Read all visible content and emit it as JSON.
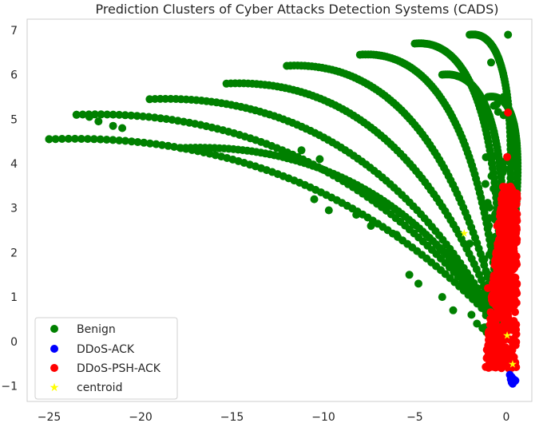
{
  "chart_data": {
    "type": "scatter",
    "title": "Prediction Clusters of Cyber Attacks Detection Systems (CADS)",
    "xlabel": "",
    "ylabel": "",
    "xlim": [
      -26.2,
      1.4
    ],
    "ylim": [
      -1.35,
      7.25
    ],
    "xticks": [
      -25,
      -20,
      -15,
      -10,
      -5,
      0
    ],
    "yticks": [
      -1,
      0,
      1,
      2,
      3,
      4,
      5,
      6,
      7
    ],
    "grid": false,
    "legend_position": "lower-left",
    "legend": [
      "Benign",
      "DDoS-ACK",
      "DDoS-PSH-ACK",
      "centroid"
    ],
    "colors": {
      "Benign": "#008000",
      "DDoS-ACK": "#0000ff",
      "DDoS-PSH-ACK": "#ff0000",
      "centroid": "#ffff00"
    },
    "series": [
      {
        "name": "Benign",
        "marker": "circle",
        "arcs": [
          {
            "start": [
              -25.0,
              4.55
            ]
          },
          {
            "start": [
              -23.5,
              5.1
            ]
          },
          {
            "start": [
              -19.5,
              5.45
            ]
          },
          {
            "start": [
              -17.8,
              4.35
            ]
          },
          {
            "start": [
              -15.3,
              5.8
            ]
          },
          {
            "start": [
              -12.0,
              6.2
            ]
          },
          {
            "start": [
              -8.0,
              6.45
            ]
          },
          {
            "start": [
              -5.0,
              6.7
            ]
          },
          {
            "start": [
              -3.5,
              6.0
            ]
          },
          {
            "start": [
              -2.0,
              6.9
            ]
          },
          {
            "start": [
              -1.0,
              5.5
            ]
          }
        ],
        "points": [
          [
            -25.0,
            4.55
          ],
          [
            -23.5,
            5.1
          ],
          [
            -22.8,
            5.05
          ],
          [
            -22.3,
            4.95
          ],
          [
            -21.5,
            4.85
          ],
          [
            -21.0,
            4.8
          ],
          [
            -17.8,
            4.35
          ],
          [
            -10.5,
            3.2
          ],
          [
            -9.7,
            2.95
          ],
          [
            -11.2,
            4.3
          ],
          [
            -10.2,
            4.1
          ],
          [
            -8.2,
            2.85
          ],
          [
            -7.4,
            2.6
          ],
          [
            -6.0,
            2.4
          ],
          [
            -5.3,
            1.5
          ],
          [
            -4.8,
            1.3
          ],
          [
            -3.5,
            1.0
          ],
          [
            -2.9,
            0.7
          ],
          [
            -1.9,
            0.6
          ],
          [
            -1.6,
            0.4
          ],
          [
            -1.3,
            0.3
          ],
          [
            -2.0,
            2.2
          ],
          [
            0.3,
            4.3
          ],
          [
            0.2,
            5.05
          ],
          [
            0.1,
            6.9
          ],
          [
            0.35,
            4.0
          ],
          [
            -0.2,
            3.8
          ],
          [
            -0.5,
            2.1
          ]
        ]
      },
      {
        "name": "DDoS-ACK",
        "marker": "circle",
        "points": [
          [
            0.2,
            -0.75
          ],
          [
            0.3,
            -0.8
          ],
          [
            0.4,
            -0.85
          ],
          [
            0.45,
            -0.9
          ],
          [
            0.35,
            -0.95
          ],
          [
            0.25,
            -0.85
          ],
          [
            0.5,
            -0.88
          ],
          [
            0.3,
            -0.92
          ]
        ]
      },
      {
        "name": "DDoS-PSH-ACK",
        "marker": "circle",
        "region": {
          "x": [
            -1.2,
            0.6
          ],
          "y": [
            -0.6,
            3.5
          ]
        },
        "points": [
          [
            0.1,
            5.15
          ],
          [
            0.05,
            4.15
          ],
          [
            -0.1,
            3.2
          ],
          [
            0.2,
            3.4
          ],
          [
            0.4,
            3.0
          ],
          [
            -0.5,
            2.6
          ],
          [
            -1.0,
            1.2
          ],
          [
            0.0,
            0.5
          ],
          [
            0.3,
            -0.3
          ]
        ]
      },
      {
        "name": "centroid",
        "marker": "star",
        "points": [
          [
            -2.3,
            2.45
          ],
          [
            0.05,
            0.15
          ],
          [
            0.35,
            -0.5
          ]
        ]
      }
    ]
  }
}
